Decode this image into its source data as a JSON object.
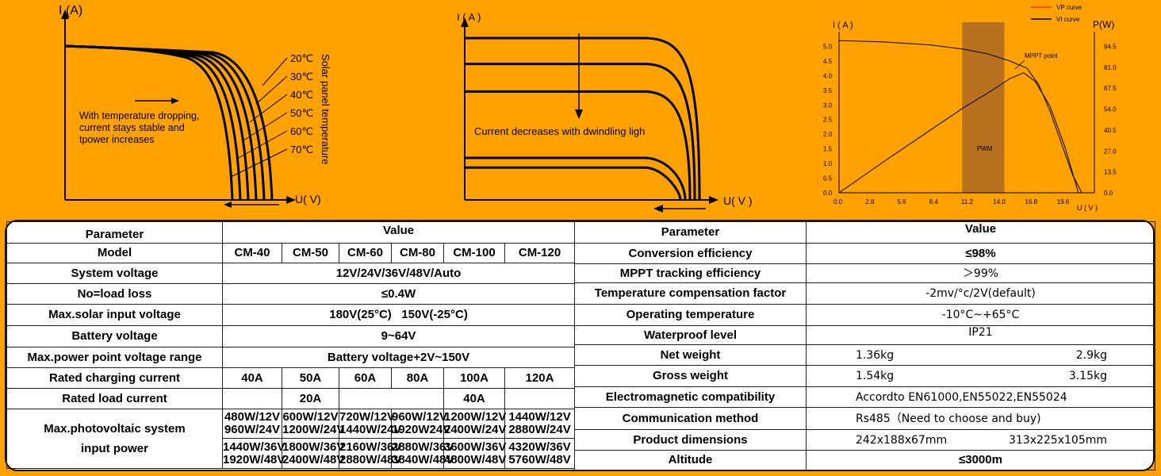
{
  "chart_data": [
    {
      "type": "line",
      "ylabel": "I (A)",
      "xlabel": "U( V)",
      "side_label": "Solar panel temperature",
      "series": [
        {
          "name": "20℃"
        },
        {
          "name": "30℃"
        },
        {
          "name": "40℃"
        },
        {
          "name": "50℃"
        },
        {
          "name": "60℃"
        },
        {
          "name": "70℃"
        }
      ],
      "annotation": [
        "With temperature dropping,",
        "current stays stable and",
        "tpower increases"
      ]
    },
    {
      "type": "line",
      "ylabel": "I ( A )",
      "xlabel": "U( V )",
      "annotation": "Current decreases with dwindling ligh",
      "series_plateaus": [
        1.0,
        0.84,
        0.67,
        0.26,
        0.2
      ]
    },
    {
      "type": "line",
      "ylabel": "I ( A )",
      "ylabel_right": "P(W)",
      "xlabel": "U ( V )",
      "x_ticks": [
        "0.0",
        "2.8",
        "5.6",
        "8.4",
        "11.2",
        "14.0",
        "16.8",
        "19.6"
      ],
      "y_ticks": [
        "0.0",
        "0.5",
        "1.0",
        "1.5",
        "2.0",
        "2.5",
        "3.0",
        "3.5",
        "4.0",
        "4.5",
        "5.0"
      ],
      "y_ticks_right": [
        "0.0",
        "13.5",
        "27.0",
        "40.5",
        "54.0",
        "67.5",
        "81.0",
        "94.5"
      ],
      "xlim": [
        0,
        22.4
      ],
      "ylim": [
        0,
        5.5
      ],
      "y2lim": [
        0,
        104
      ],
      "legend": [
        "VP curve",
        "VI curve"
      ],
      "legend_position": "top-right",
      "region_label": "PWM",
      "region_x": [
        10.8,
        14.5
      ],
      "mppt_label": "MPPT point",
      "vi": {
        "x": [
          0,
          4,
          8,
          11,
          13,
          15,
          16.5,
          17.5,
          18.5,
          19.5,
          20.5,
          21.3
        ],
        "y": [
          5.2,
          5.15,
          5.05,
          4.9,
          4.75,
          4.5,
          4.25,
          3.7,
          2.8,
          1.7,
          0.6,
          0
        ]
      },
      "vp": {
        "x": [
          0,
          4,
          8,
          11,
          13,
          15,
          16.2,
          17.2,
          18.5,
          19.8,
          21.0
        ],
        "y": [
          0,
          20.5,
          40.4,
          55.3,
          64.2,
          73.7,
          77.5,
          72,
          56,
          30,
          0
        ]
      }
    }
  ],
  "left_table": {
    "header": {
      "param": "Parameter",
      "value": "Value"
    },
    "model": {
      "label": "Model",
      "values": [
        "CM-40",
        "CM-50",
        "CM-60",
        "CM-80",
        "CM-100",
        "CM-120"
      ]
    },
    "system_voltage": {
      "label": "System voltage",
      "value": "12V/24V/36V/48V/Auto"
    },
    "no_load_loss": {
      "label": "No=load loss",
      "value": "≤0.4W"
    },
    "max_solar_input": {
      "label": "Max.solar input voltage",
      "value": "180V(25°C)   150V(-25°C)"
    },
    "battery_voltage": {
      "label": "Battery voltage",
      "value": "9~64V"
    },
    "mpp_range": {
      "label": "Max.power point voltage range",
      "value": "Battery voltage+2V~150V"
    },
    "rated_charging": {
      "label": "Rated charging current",
      "values": [
        "40A",
        "50A",
        "60A",
        "80A",
        "100A",
        "120A"
      ]
    },
    "rated_load": {
      "label": "Rated load current",
      "value_a": "20A",
      "value_b": "40A"
    },
    "pv_power": {
      "label_1": "Max.photovoltaic system",
      "label_2": "input power",
      "row1": [
        [
          "480W/12V",
          "960W/24V"
        ],
        [
          "600W/12V",
          "1200W/24V"
        ],
        [
          "720W/12V",
          "1440W/24V"
        ],
        [
          "960W/12V",
          "1920W24V"
        ],
        [
          "1200W/12V",
          "2400W/24V"
        ],
        [
          "1440W/12V",
          "2880W/24V"
        ]
      ],
      "row2": [
        [
          "1440W/36V",
          "1920W/48V"
        ],
        [
          "1800W/36V",
          "2400W/48V"
        ],
        [
          "2160W/36V",
          "2880W/48V"
        ],
        [
          "2880W/36V",
          "3840W/48V"
        ],
        [
          "3600W/36V",
          "4800W/48V"
        ],
        [
          "4320W/36V",
          "5760W/48V"
        ]
      ]
    }
  },
  "right_table": {
    "header": {
      "param": "Parameter",
      "value": "Value"
    },
    "rows": [
      {
        "label": "Conversion efficiency",
        "value": "≤98%"
      },
      {
        "label": "MPPT tracking efficiency",
        "value": "＞99%"
      },
      {
        "label": "Temperature compensation factor",
        "value": "-2mv/°c/2V(default)"
      },
      {
        "label": "Operating temperature",
        "value": "-10°C~+65°C"
      },
      {
        "label": "Waterproof level",
        "value": "IP21"
      },
      {
        "label": "Net weight",
        "value_a": "1.36kg",
        "value_b": "2.9kg"
      },
      {
        "label": "Gross weight",
        "value_a": "1.54kg",
        "value_b": "3.15kg"
      },
      {
        "label": "Electromagnetic compatibility",
        "value": "Accordto EN61000,EN55022,EN55024"
      },
      {
        "label": "Communication method",
        "value": "Rs485（Need to choose and buy)"
      },
      {
        "label": "Product dimensions",
        "value_a": "242x188x67mm",
        "value_b": "313x225x105mm"
      },
      {
        "label": "Altitude",
        "value": "≤3000m"
      }
    ]
  }
}
